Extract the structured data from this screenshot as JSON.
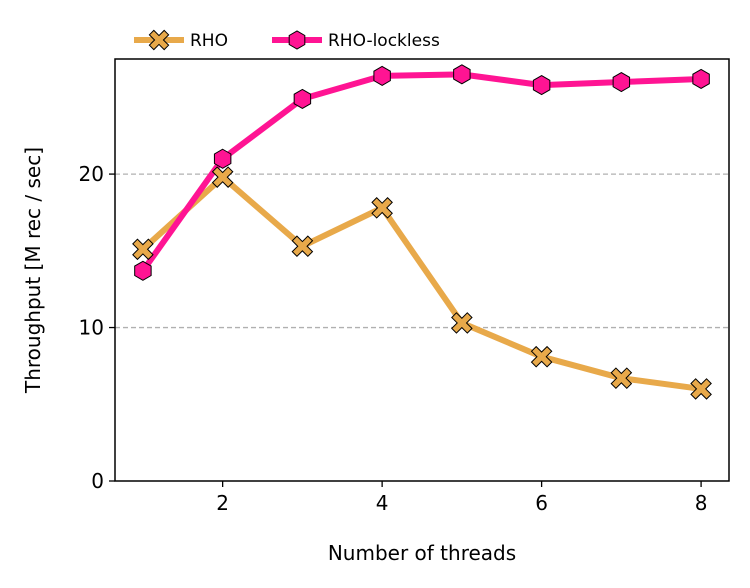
{
  "chart_data": {
    "type": "line",
    "xlabel": "Number of threads",
    "ylabel": "Throughput [M rec / sec]",
    "x": [
      1,
      2,
      3,
      4,
      5,
      6,
      7,
      8
    ],
    "xlim": [
      0.65,
      8.35
    ],
    "ylim": [
      0,
      27.5
    ],
    "xticks": [
      2,
      4,
      6,
      8
    ],
    "yticks": [
      0,
      10,
      20
    ],
    "grid": "y-dashed",
    "legend_position": "top-left-outside",
    "series": [
      {
        "name": "RHO",
        "values": [
          15.1,
          19.8,
          15.3,
          17.8,
          10.3,
          8.1,
          6.7,
          6.0
        ],
        "color": "#E8A94A",
        "marker": "x-filled"
      },
      {
        "name": "RHO-lockless",
        "values": [
          13.7,
          21.0,
          24.9,
          26.4,
          26.5,
          25.8,
          26.0,
          26.2
        ],
        "color": "#FF1493",
        "marker": "hexagon"
      }
    ]
  }
}
